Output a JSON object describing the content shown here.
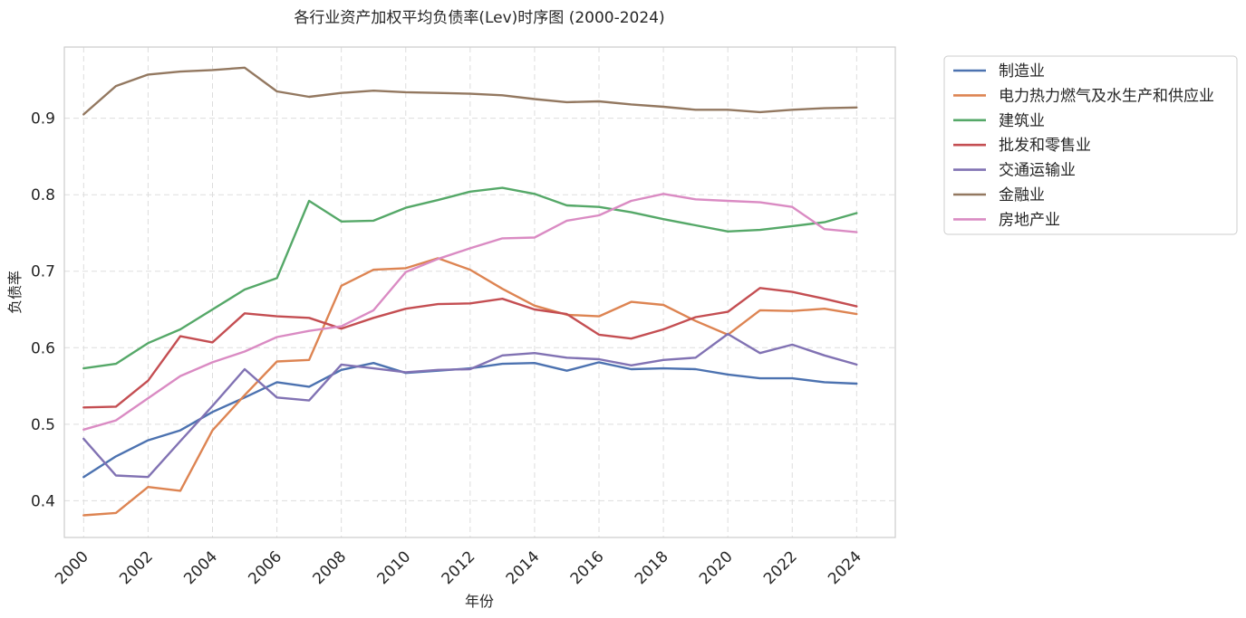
{
  "chart_data": {
    "type": "line",
    "title": "各行业资产加权平均负债率(Lev)时序图 (2000-2024)",
    "xlabel": "年份",
    "ylabel": "负债率",
    "xlim": [
      1999.4,
      2025.2
    ],
    "ylim": [
      0.352,
      0.993
    ],
    "grid": true,
    "legend_position": "outside-top-right",
    "x": [
      2000,
      2001,
      2002,
      2003,
      2004,
      2005,
      2006,
      2007,
      2008,
      2009,
      2010,
      2011,
      2012,
      2013,
      2014,
      2015,
      2016,
      2017,
      2018,
      2019,
      2020,
      2021,
      2022,
      2023,
      2024
    ],
    "x_ticks": [
      "2000",
      "2002",
      "2004",
      "2006",
      "2008",
      "2010",
      "2012",
      "2014",
      "2016",
      "2018",
      "2020",
      "2022",
      "2024"
    ],
    "y_ticks": [
      "0.4",
      "0.5",
      "0.6",
      "0.7",
      "0.8",
      "0.9"
    ],
    "series": [
      {
        "name": "制造业",
        "color": "#4c72b0",
        "values": [
          0.431,
          0.458,
          0.479,
          0.492,
          0.516,
          0.535,
          0.555,
          0.549,
          0.571,
          0.58,
          0.567,
          0.57,
          0.573,
          0.579,
          0.58,
          0.57,
          0.581,
          0.572,
          0.573,
          0.572,
          0.565,
          0.56,
          0.56,
          0.555,
          0.553
        ]
      },
      {
        "name": "电力热力燃气及水生产和供应业",
        "color": "#dd8452",
        "values": [
          0.381,
          0.384,
          0.418,
          0.413,
          0.492,
          0.538,
          0.582,
          0.584,
          0.681,
          0.702,
          0.704,
          0.717,
          0.702,
          0.677,
          0.655,
          0.643,
          0.641,
          0.66,
          0.656,
          0.635,
          0.617,
          0.649,
          0.648,
          0.651,
          0.644
        ]
      },
      {
        "name": "建筑业",
        "color": "#55a868",
        "values": [
          0.573,
          0.579,
          0.606,
          0.624,
          0.65,
          0.676,
          0.691,
          0.792,
          0.765,
          0.766,
          0.783,
          0.793,
          0.804,
          0.809,
          0.801,
          0.786,
          0.784,
          0.777,
          0.768,
          0.76,
          0.752,
          0.754,
          0.759,
          0.764,
          0.776
        ]
      },
      {
        "name": "批发和零售业",
        "color": "#c44e52",
        "values": [
          0.522,
          0.523,
          0.557,
          0.615,
          0.607,
          0.645,
          0.641,
          0.639,
          0.625,
          0.639,
          0.651,
          0.657,
          0.658,
          0.664,
          0.65,
          0.644,
          0.617,
          0.612,
          0.624,
          0.64,
          0.647,
          0.678,
          0.673,
          0.664,
          0.654
        ]
      },
      {
        "name": "交通运输业",
        "color": "#8172b3",
        "values": [
          0.481,
          0.433,
          0.431,
          0.478,
          0.524,
          0.572,
          0.535,
          0.531,
          0.578,
          0.573,
          0.568,
          0.571,
          0.572,
          0.59,
          0.593,
          0.587,
          0.585,
          0.577,
          0.584,
          0.587,
          0.618,
          0.593,
          0.604,
          0.59,
          0.578
        ]
      },
      {
        "name": "金融业",
        "color": "#937860",
        "values": [
          0.905,
          0.942,
          0.957,
          0.961,
          0.963,
          0.966,
          0.935,
          0.928,
          0.933,
          0.936,
          0.934,
          0.933,
          0.932,
          0.93,
          0.925,
          0.921,
          0.922,
          0.918,
          0.915,
          0.911,
          0.911,
          0.908,
          0.911,
          0.913,
          0.914
        ]
      },
      {
        "name": "房地产业",
        "color": "#da8bc3",
        "values": [
          0.493,
          0.505,
          0.534,
          0.563,
          0.581,
          0.595,
          0.614,
          0.622,
          0.628,
          0.649,
          0.699,
          0.716,
          0.73,
          0.743,
          0.744,
          0.766,
          0.773,
          0.792,
          0.801,
          0.794,
          0.792,
          0.79,
          0.784,
          0.755,
          0.751
        ]
      }
    ]
  }
}
